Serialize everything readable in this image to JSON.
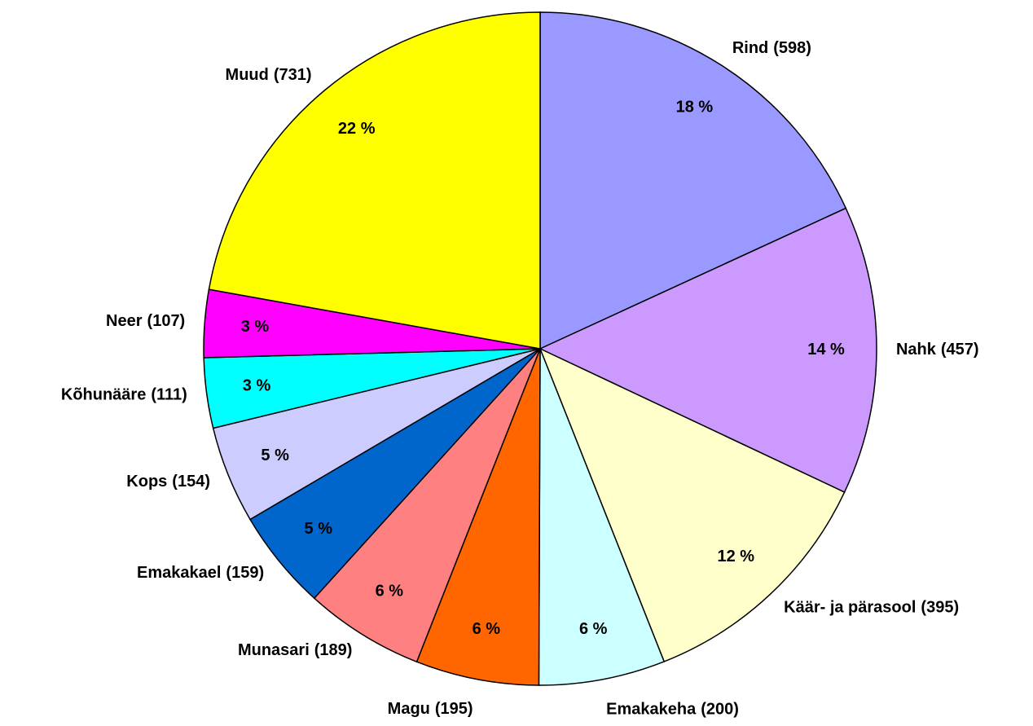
{
  "chart_data": {
    "type": "pie",
    "categories": [
      "Rind",
      "Nahk",
      "Käär- ja pärasool",
      "Emakakeha",
      "Magu",
      "Munasari",
      "Emakakael",
      "Kops",
      "Kõhunääre",
      "Neer",
      "Muud"
    ],
    "values": [
      598,
      457,
      395,
      200,
      195,
      189,
      159,
      154,
      111,
      107,
      731
    ],
    "value_labels": [
      "(598)",
      "(457)",
      "(395)",
      "(200)",
      "(195)",
      "(189)",
      "(159)",
      "(154)",
      "(111)",
      "(107)",
      "(731)"
    ],
    "percent_labels": [
      "18 %",
      "14 %",
      "12 %",
      "6 %",
      "6 %",
      "6 %",
      "5 %",
      "5 %",
      "3 %",
      "3 %",
      "22 %"
    ],
    "colors": [
      "#9999ff",
      "#cc99ff",
      "#ffffcc",
      "#ccffff",
      "#ff6600",
      "#ff8080",
      "#0066cc",
      "#ccccff",
      "#00ffff",
      "#ff00ff",
      "#ffff00"
    ]
  }
}
